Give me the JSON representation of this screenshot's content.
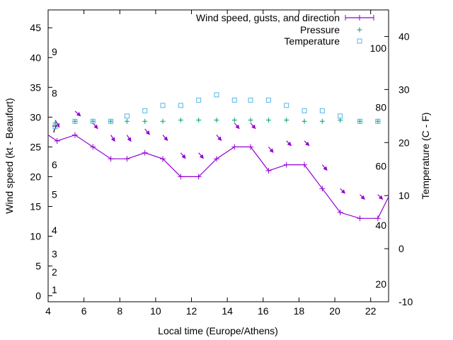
{
  "chart_data": {
    "type": "line",
    "xlabel": "Local time (Europe/Athens)",
    "ylabel": "Wind speed (kt - Beaufort)",
    "y2label": "Temperature (C - F)",
    "xlim": [
      4,
      23
    ],
    "ylim": [
      -1,
      48
    ],
    "y2lim": [
      -10,
      45
    ],
    "x_ticks": [
      4,
      6,
      8,
      10,
      12,
      14,
      16,
      18,
      20,
      22
    ],
    "y_ticks": [
      0,
      5,
      10,
      15,
      20,
      25,
      30,
      35,
      40,
      45
    ],
    "y2_ticks": [
      -10,
      0,
      10,
      20,
      30,
      40
    ],
    "grid": false,
    "legend_position": "top-right",
    "legend": [
      "Wind speed, gusts, and direction",
      "Pressure",
      "Temperature"
    ],
    "beaufort_labels": [
      {
        "text": "1",
        "y": 1
      },
      {
        "text": "2",
        "y": 4
      },
      {
        "text": "3",
        "y": 7
      },
      {
        "text": "4",
        "y": 11
      },
      {
        "text": "5",
        "y": 17
      },
      {
        "text": "6",
        "y": 22
      },
      {
        "text": "7",
        "y": 28
      },
      {
        "text": "8",
        "y": 34
      },
      {
        "text": "9",
        "y": 41
      }
    ],
    "fahrenheit_labels": [
      {
        "text": "20",
        "f": 20
      },
      {
        "text": "40",
        "f": 40
      },
      {
        "text": "60",
        "f": 60
      },
      {
        "text": "80",
        "f": 80
      },
      {
        "text": "100",
        "f": 100
      }
    ],
    "series": [
      {
        "name": "Wind speed, gusts, and direction",
        "color": "#9400d3",
        "x": [
          3.5,
          4.5,
          5.5,
          6.5,
          7.5,
          8.4,
          9.4,
          10.4,
          11.4,
          12.4,
          13.4,
          14.4,
          15.3,
          16.3,
          17.3,
          18.3,
          19.3,
          20.3,
          21.4,
          22.4,
          23.4
        ],
        "y": [
          28,
          26,
          27,
          25,
          23,
          23,
          24,
          23,
          20,
          20,
          23,
          25,
          25,
          21,
          22,
          22,
          18,
          14,
          13,
          13,
          19
        ]
      },
      {
        "name": "Pressure",
        "color": "#009e73",
        "x": [
          4.4,
          5.5,
          6.5,
          7.5,
          8.4,
          9.4,
          10.4,
          11.4,
          12.4,
          13.4,
          14.4,
          15.3,
          16.3,
          17.3,
          18.3,
          19.3,
          20.3,
          21.4,
          22.4
        ],
        "y": [
          29,
          29.3,
          29.3,
          29.3,
          29.3,
          29.3,
          29.3,
          29.5,
          29.5,
          29.5,
          29.5,
          29.5,
          29.5,
          29.5,
          29.3,
          29.3,
          29.5,
          29.3,
          29.3
        ]
      },
      {
        "name": "Temperature",
        "color": "#56b4e9",
        "x": [
          4.4,
          5.5,
          6.5,
          7.5,
          8.4,
          9.4,
          10.4,
          11.4,
          12.4,
          13.4,
          14.4,
          15.3,
          16.3,
          17.3,
          18.3,
          19.3,
          20.3,
          21.4,
          22.4
        ],
        "y": [
          23,
          24,
          24,
          24,
          25,
          26,
          27,
          27,
          28,
          29,
          28,
          28,
          28,
          27,
          26,
          26,
          25,
          24,
          24
        ]
      }
    ],
    "wind_direction_arrows": [
      {
        "x": 4.4,
        "y": 29.5,
        "dx": 0.5,
        "dy": -0.9
      },
      {
        "x": 5.5,
        "y": 31,
        "dx": 0.7,
        "dy": -0.6
      },
      {
        "x": 6.5,
        "y": 29,
        "dx": 0.6,
        "dy": -0.7
      },
      {
        "x": 7.5,
        "y": 27,
        "dx": 0.5,
        "dy": -0.8
      },
      {
        "x": 8.4,
        "y": 27,
        "dx": 0.5,
        "dy": -0.8
      },
      {
        "x": 9.4,
        "y": 28,
        "dx": 0.6,
        "dy": -0.7
      },
      {
        "x": 10.4,
        "y": 27,
        "dx": 0.6,
        "dy": -0.7
      },
      {
        "x": 11.4,
        "y": 24,
        "dx": 0.6,
        "dy": -0.7
      },
      {
        "x": 12.4,
        "y": 24,
        "dx": 0.6,
        "dy": -0.7
      },
      {
        "x": 13.4,
        "y": 27,
        "dx": 0.6,
        "dy": -0.7
      },
      {
        "x": 14.4,
        "y": 29,
        "dx": 0.6,
        "dy": -0.7
      },
      {
        "x": 15.3,
        "y": 29,
        "dx": 0.6,
        "dy": -0.7
      },
      {
        "x": 16.3,
        "y": 25,
        "dx": 0.6,
        "dy": -0.7
      },
      {
        "x": 17.3,
        "y": 26,
        "dx": 0.6,
        "dy": -0.6
      },
      {
        "x": 18.3,
        "y": 26,
        "dx": 0.6,
        "dy": -0.6
      },
      {
        "x": 19.3,
        "y": 22,
        "dx": 0.6,
        "dy": -0.7
      },
      {
        "x": 20.3,
        "y": 18,
        "dx": 0.6,
        "dy": -0.6
      },
      {
        "x": 21.4,
        "y": 17,
        "dx": 0.6,
        "dy": -0.6
      },
      {
        "x": 22.4,
        "y": 17,
        "dx": 0.6,
        "dy": -0.6
      }
    ]
  }
}
